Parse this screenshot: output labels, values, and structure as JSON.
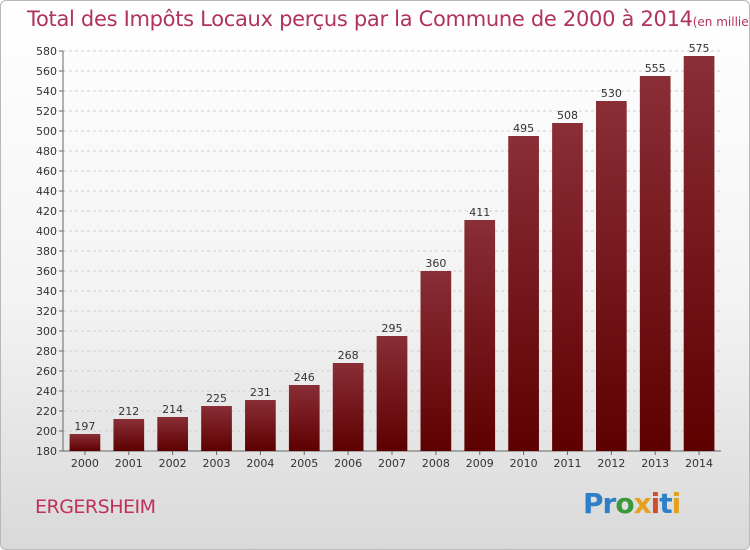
{
  "title": "Total des Impôts Locaux perçus par la Commune de 2000 à 2014",
  "title_unit": "(en milliers d'€)",
  "commune": "ERGERSHEIM",
  "brand": [
    "Pr",
    "o",
    "x",
    "i",
    "t",
    "i"
  ],
  "colors": {
    "bar_light": "#8a2e37",
    "bar_dark": "#5c0000",
    "title": "#b0345a",
    "grid": "#cfcfcf"
  },
  "chart_data": {
    "type": "bar",
    "title": "Total des Impôts Locaux perçus par la Commune de 2000 à 2014",
    "xlabel": "",
    "ylabel": "en milliers d'€",
    "ylim": [
      180,
      580
    ],
    "ytick_step": 20,
    "grid": true,
    "categories": [
      "2000",
      "2001",
      "2002",
      "2003",
      "2004",
      "2005",
      "2006",
      "2007",
      "2008",
      "2009",
      "2010",
      "2011",
      "2012",
      "2013",
      "2014"
    ],
    "values": [
      197,
      212,
      214,
      225,
      231,
      246,
      268,
      295,
      360,
      411,
      495,
      508,
      530,
      555,
      575
    ]
  }
}
